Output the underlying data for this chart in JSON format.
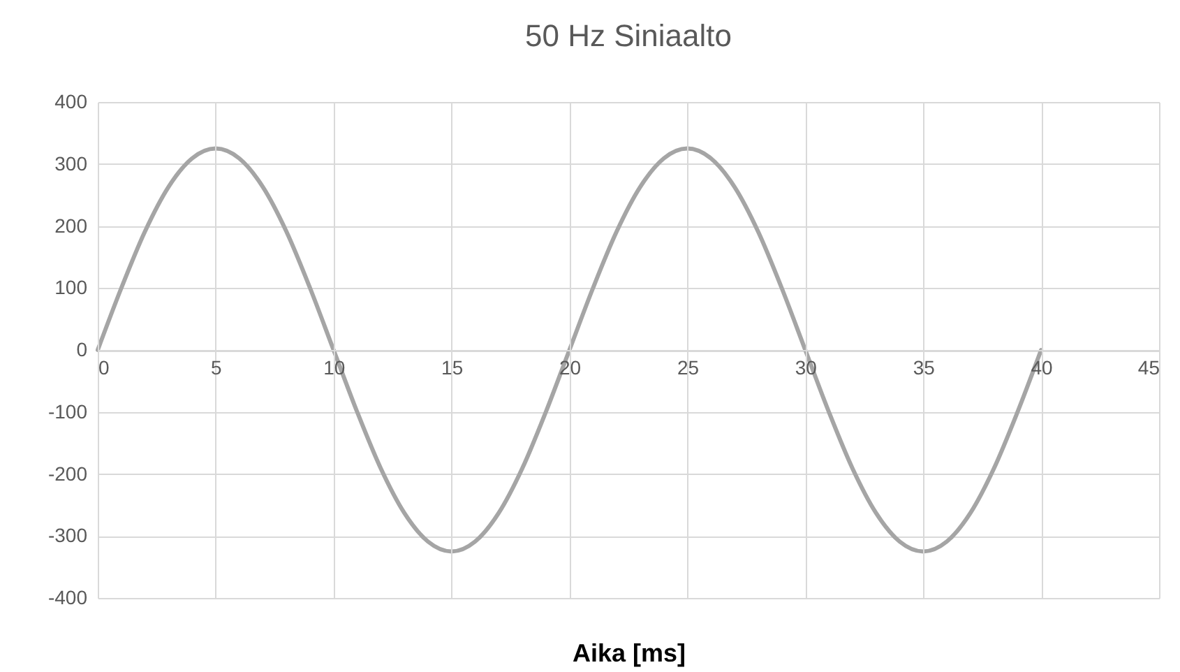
{
  "chart_data": {
    "type": "line",
    "title": "50 Hz Siniaalto",
    "xlabel": "Aika [ms]",
    "x": [
      0,
      1,
      2,
      3,
      4,
      5,
      6,
      7,
      8,
      9,
      10,
      11,
      12,
      13,
      14,
      15,
      16,
      17,
      18,
      19,
      20,
      21,
      22,
      23,
      24,
      25,
      26,
      27,
      28,
      29,
      30,
      31,
      32,
      33,
      34,
      35,
      36,
      37,
      38,
      39,
      40
    ],
    "series": [
      {
        "color": "#a5a5a5",
        "values": [
          0,
          100,
          191,
          263,
          309,
          325,
          309,
          263,
          191,
          100,
          0,
          -100,
          -191,
          -263,
          -309,
          -325,
          -309,
          -263,
          -191,
          -100,
          0,
          100,
          191,
          263,
          309,
          325,
          309,
          263,
          191,
          100,
          0,
          -100,
          -191,
          -263,
          -309,
          -325,
          -309,
          -263,
          -191,
          -100,
          0
        ]
      }
    ],
    "xlim": [
      0,
      45
    ],
    "xticks": [
      0,
      5,
      10,
      15,
      20,
      25,
      30,
      35,
      40,
      45
    ],
    "ylim": [
      -400,
      400
    ],
    "yticks": [
      -400,
      -300,
      -200,
      -100,
      0,
      100,
      200,
      300,
      400
    ],
    "grid": true,
    "marker": "none",
    "line_style": "solid"
  }
}
